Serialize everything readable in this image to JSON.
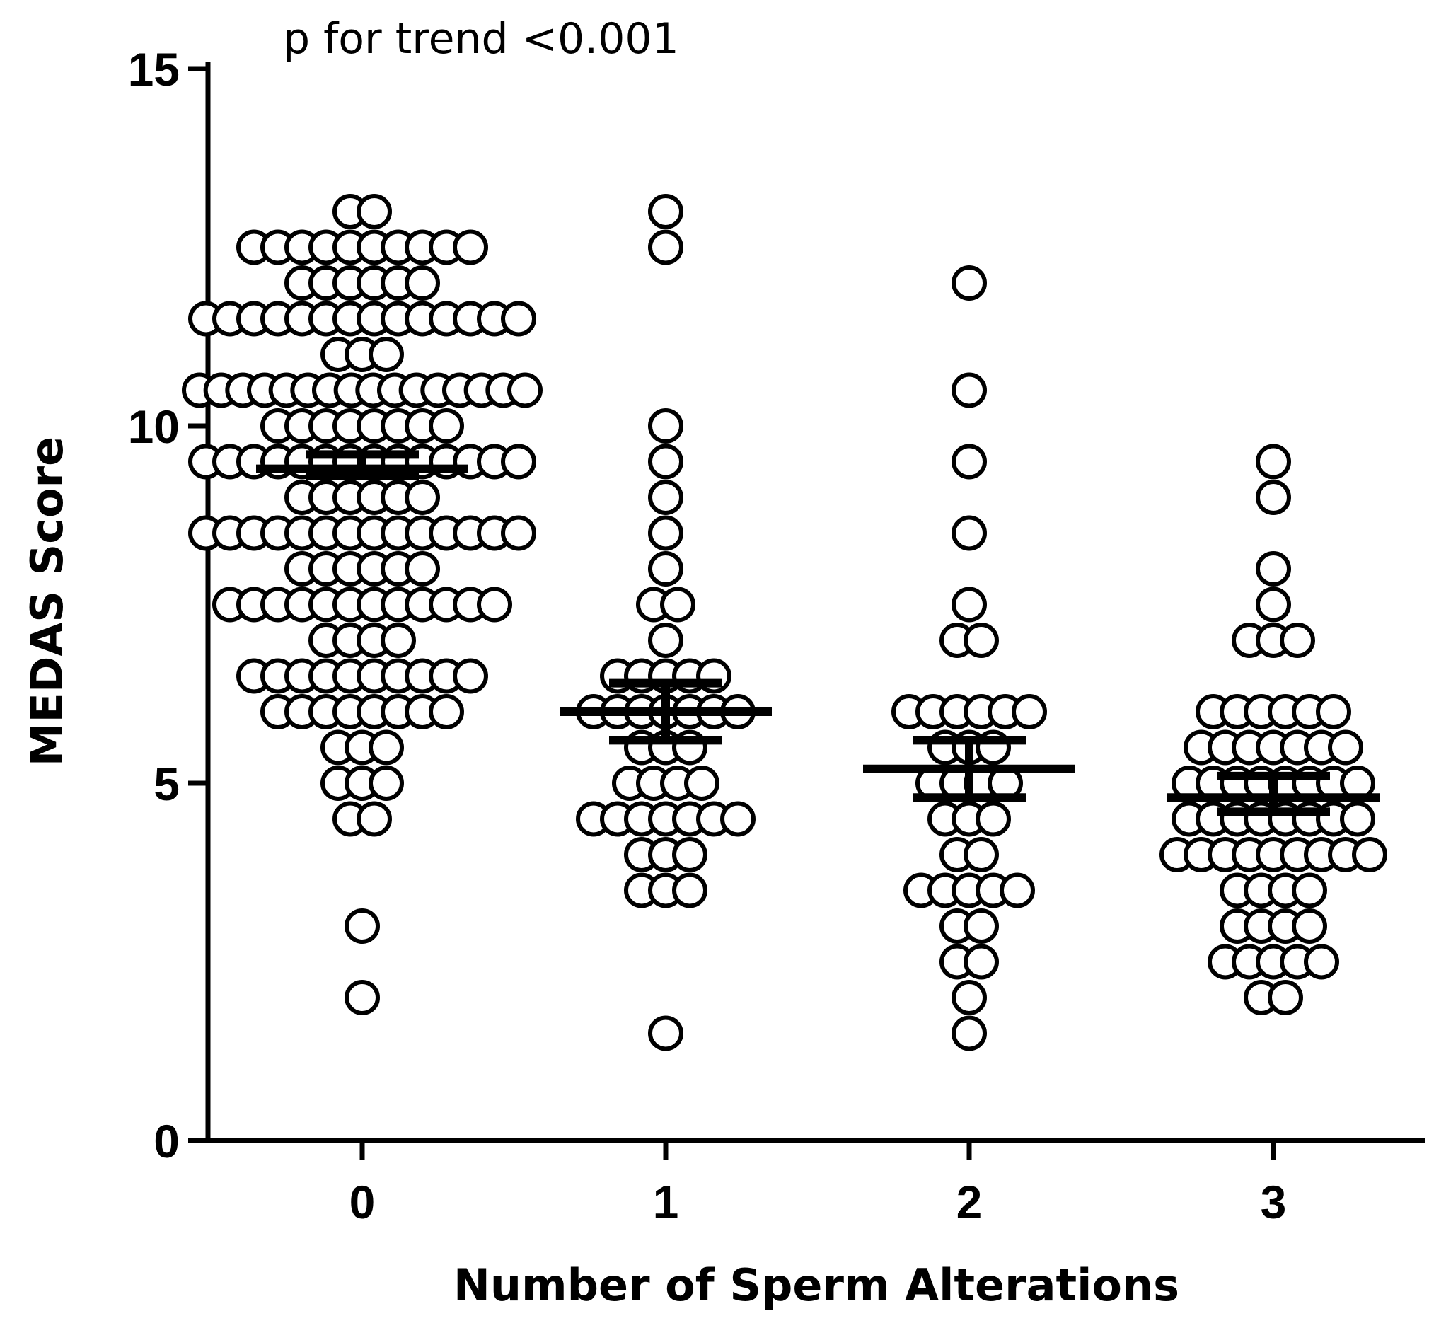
{
  "chart_data": {
    "type": "scatter",
    "subtype": "dot-plot",
    "annotation": "p for trend <0.001",
    "xlabel": "Number of Sperm Alterations",
    "ylabel": "MEDAS Score",
    "ylim": [
      0,
      15
    ],
    "yticks": [
      "0",
      "5",
      "10",
      "15"
    ],
    "categories": [
      "0",
      "1",
      "2",
      "3"
    ],
    "groups": [
      {
        "category": "0",
        "mean": 9.4,
        "sem_low": 9.3,
        "sem_high": 9.6,
        "points": [
          {
            "value": 13.0,
            "count": 2
          },
          {
            "value": 12.5,
            "count": 10
          },
          {
            "value": 12.0,
            "count": 6
          },
          {
            "value": 11.5,
            "count": 14
          },
          {
            "value": 11.0,
            "count": 3
          },
          {
            "value": 10.5,
            "count": 16
          },
          {
            "value": 10.0,
            "count": 8
          },
          {
            "value": 9.5,
            "count": 14
          },
          {
            "value": 9.0,
            "count": 6
          },
          {
            "value": 8.5,
            "count": 14
          },
          {
            "value": 8.0,
            "count": 6
          },
          {
            "value": 7.5,
            "count": 12
          },
          {
            "value": 7.0,
            "count": 4
          },
          {
            "value": 6.5,
            "count": 10
          },
          {
            "value": 6.0,
            "count": 8
          },
          {
            "value": 5.5,
            "count": 3
          },
          {
            "value": 5.0,
            "count": 3
          },
          {
            "value": 4.5,
            "count": 2
          },
          {
            "value": 3.0,
            "count": 1
          },
          {
            "value": 2.0,
            "count": 1
          }
        ]
      },
      {
        "category": "1",
        "mean": 6.0,
        "sem_low": 5.6,
        "sem_high": 6.4,
        "points": [
          {
            "value": 13.0,
            "count": 1
          },
          {
            "value": 12.5,
            "count": 1
          },
          {
            "value": 10.0,
            "count": 1
          },
          {
            "value": 9.5,
            "count": 1
          },
          {
            "value": 9.0,
            "count": 1
          },
          {
            "value": 8.5,
            "count": 1
          },
          {
            "value": 8.0,
            "count": 1
          },
          {
            "value": 7.5,
            "count": 2
          },
          {
            "value": 7.0,
            "count": 1
          },
          {
            "value": 6.5,
            "count": 5
          },
          {
            "value": 6.0,
            "count": 7
          },
          {
            "value": 5.5,
            "count": 3
          },
          {
            "value": 5.0,
            "count": 4
          },
          {
            "value": 4.5,
            "count": 7
          },
          {
            "value": 4.0,
            "count": 3
          },
          {
            "value": 3.5,
            "count": 3
          },
          {
            "value": 1.5,
            "count": 1
          }
        ]
      },
      {
        "category": "2",
        "mean": 5.2,
        "sem_low": 4.8,
        "sem_high": 5.6,
        "points": [
          {
            "value": 12.0,
            "count": 1
          },
          {
            "value": 10.5,
            "count": 1
          },
          {
            "value": 9.5,
            "count": 1
          },
          {
            "value": 8.5,
            "count": 1
          },
          {
            "value": 7.5,
            "count": 1
          },
          {
            "value": 7.0,
            "count": 2
          },
          {
            "value": 6.0,
            "count": 6
          },
          {
            "value": 5.5,
            "count": 3
          },
          {
            "value": 5.0,
            "count": 4
          },
          {
            "value": 4.5,
            "count": 3
          },
          {
            "value": 4.0,
            "count": 2
          },
          {
            "value": 3.5,
            "count": 5
          },
          {
            "value": 3.0,
            "count": 2
          },
          {
            "value": 2.5,
            "count": 2
          },
          {
            "value": 2.0,
            "count": 1
          },
          {
            "value": 1.5,
            "count": 1
          }
        ]
      },
      {
        "category": "3",
        "mean": 4.8,
        "sem_low": 4.6,
        "sem_high": 5.1,
        "points": [
          {
            "value": 9.5,
            "count": 1
          },
          {
            "value": 9.0,
            "count": 1
          },
          {
            "value": 8.0,
            "count": 1
          },
          {
            "value": 7.5,
            "count": 1
          },
          {
            "value": 7.0,
            "count": 3
          },
          {
            "value": 6.0,
            "count": 6
          },
          {
            "value": 5.5,
            "count": 7
          },
          {
            "value": 5.0,
            "count": 8
          },
          {
            "value": 4.5,
            "count": 8
          },
          {
            "value": 4.0,
            "count": 9
          },
          {
            "value": 3.5,
            "count": 4
          },
          {
            "value": 3.0,
            "count": 4
          },
          {
            "value": 2.5,
            "count": 5
          },
          {
            "value": 2.0,
            "count": 2
          }
        ]
      }
    ]
  }
}
